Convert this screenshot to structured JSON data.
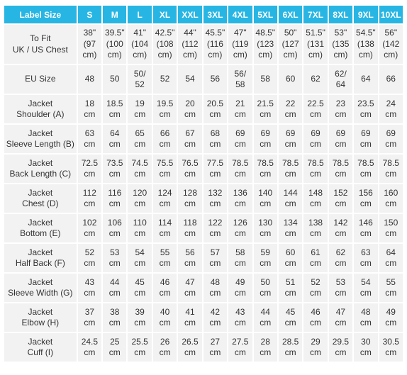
{
  "header": {
    "label_size": "Label Size",
    "sizes": [
      "S",
      "M",
      "L",
      "XL",
      "XXL",
      "3XL",
      "4XL",
      "5XL",
      "6XL",
      "7XL",
      "8XL",
      "9XL",
      "10XL"
    ]
  },
  "rows": [
    {
      "label": "To Fit\nUK / US Chest",
      "values": [
        "38\"\n(97\ncm)",
        "39.5\"\n(100\ncm)",
        "41\"\n(104\ncm)",
        "42.5\"\n(108\ncm)",
        "44\"\n(112\ncm)",
        "45.5\"\n(116\ncm)",
        "47\"\n(119\ncm)",
        "48.5\"\n(123\ncm)",
        "50\"\n(127\ncm)",
        "51.5\"\n(131\ncm)",
        "53\"\n(135\ncm)",
        "54.5\"\n(138\ncm)",
        "56\"\n(142\ncm)"
      ]
    },
    {
      "label": "EU Size",
      "values": [
        "48",
        "50",
        "50/\n52",
        "52",
        "54",
        "56",
        "56/\n58",
        "58",
        "60",
        "62",
        "62/\n64",
        "64",
        "66"
      ]
    },
    {
      "label": "Jacket\nShoulder (A)",
      "values": [
        "18\ncm",
        "18.5\ncm",
        "19\ncm",
        "19.5\ncm",
        "20\ncm",
        "20.5\ncm",
        "21\ncm",
        "21.5\ncm",
        "22\ncm",
        "22.5\ncm",
        "23\ncm",
        "23.5\ncm",
        "24\ncm"
      ]
    },
    {
      "label": "Jacket\nSleeve Length (B)",
      "values": [
        "63\ncm",
        "64\ncm",
        "65\ncm",
        "66\ncm",
        "67\ncm",
        "68\ncm",
        "69\ncm",
        "69\ncm",
        "69\ncm",
        "69\ncm",
        "69\ncm",
        "69\ncm",
        "69\ncm"
      ]
    },
    {
      "label": "Jacket\nBack Length (C)",
      "values": [
        "72.5\ncm",
        "73.5\ncm",
        "74.5\ncm",
        "75.5\ncm",
        "76.5\ncm",
        "77.5\ncm",
        "78.5\ncm",
        "78.5\ncm",
        "78.5\ncm",
        "78.5\ncm",
        "78.5\ncm",
        "78.5\ncm",
        "78.5\ncm"
      ]
    },
    {
      "label": "Jacket\nChest (D)",
      "values": [
        "112\ncm",
        "116\ncm",
        "120\ncm",
        "124\ncm",
        "128\ncm",
        "132\ncm",
        "136\ncm",
        "140\ncm",
        "144\ncm",
        "148\ncm",
        "152\ncm",
        "156\ncm",
        "160\ncm"
      ]
    },
    {
      "label": "Jacket\nBottom (E)",
      "values": [
        "102\ncm",
        "106\ncm",
        "110\ncm",
        "114\ncm",
        "118\ncm",
        "122\ncm",
        "126\ncm",
        "130\ncm",
        "134\ncm",
        "138\ncm",
        "142\ncm",
        "146\ncm",
        "150\ncm"
      ]
    },
    {
      "label": "Jacket\nHalf Back (F)",
      "values": [
        "52\ncm",
        "53\ncm",
        "54\ncm",
        "55\ncm",
        "56\ncm",
        "57\ncm",
        "58\ncm",
        "59\ncm",
        "60\ncm",
        "61\ncm",
        "62\ncm",
        "63\ncm",
        "64\ncm"
      ]
    },
    {
      "label": "Jacket\nSleeve Width (G)",
      "values": [
        "43\ncm",
        "44\ncm",
        "45\ncm",
        "46\ncm",
        "47\ncm",
        "48\ncm",
        "49\ncm",
        "50\ncm",
        "51\ncm",
        "52\ncm",
        "53\ncm",
        "54\ncm",
        "55\ncm"
      ]
    },
    {
      "label": "Jacket\nElbow (H)",
      "values": [
        "37\ncm",
        "38\ncm",
        "39\ncm",
        "40\ncm",
        "41\ncm",
        "42\ncm",
        "43\ncm",
        "44\ncm",
        "45\ncm",
        "46\ncm",
        "47\ncm",
        "48\ncm",
        "49\ncm"
      ]
    },
    {
      "label": "Jacket\nCuff (I)",
      "values": [
        "24.5\ncm",
        "25\ncm",
        "25.5\ncm",
        "26\ncm",
        "26.5\ncm",
        "27\ncm",
        "27.5\ncm",
        "28\ncm",
        "28.5\ncm",
        "29\ncm",
        "29.5\ncm",
        "30\ncm",
        "30.5\ncm"
      ]
    }
  ],
  "colors": {
    "header_bg": "#27b6e4",
    "header_text": "#ffffff",
    "cell_bg": "#f2f2f2",
    "cell_text": "#333333"
  }
}
